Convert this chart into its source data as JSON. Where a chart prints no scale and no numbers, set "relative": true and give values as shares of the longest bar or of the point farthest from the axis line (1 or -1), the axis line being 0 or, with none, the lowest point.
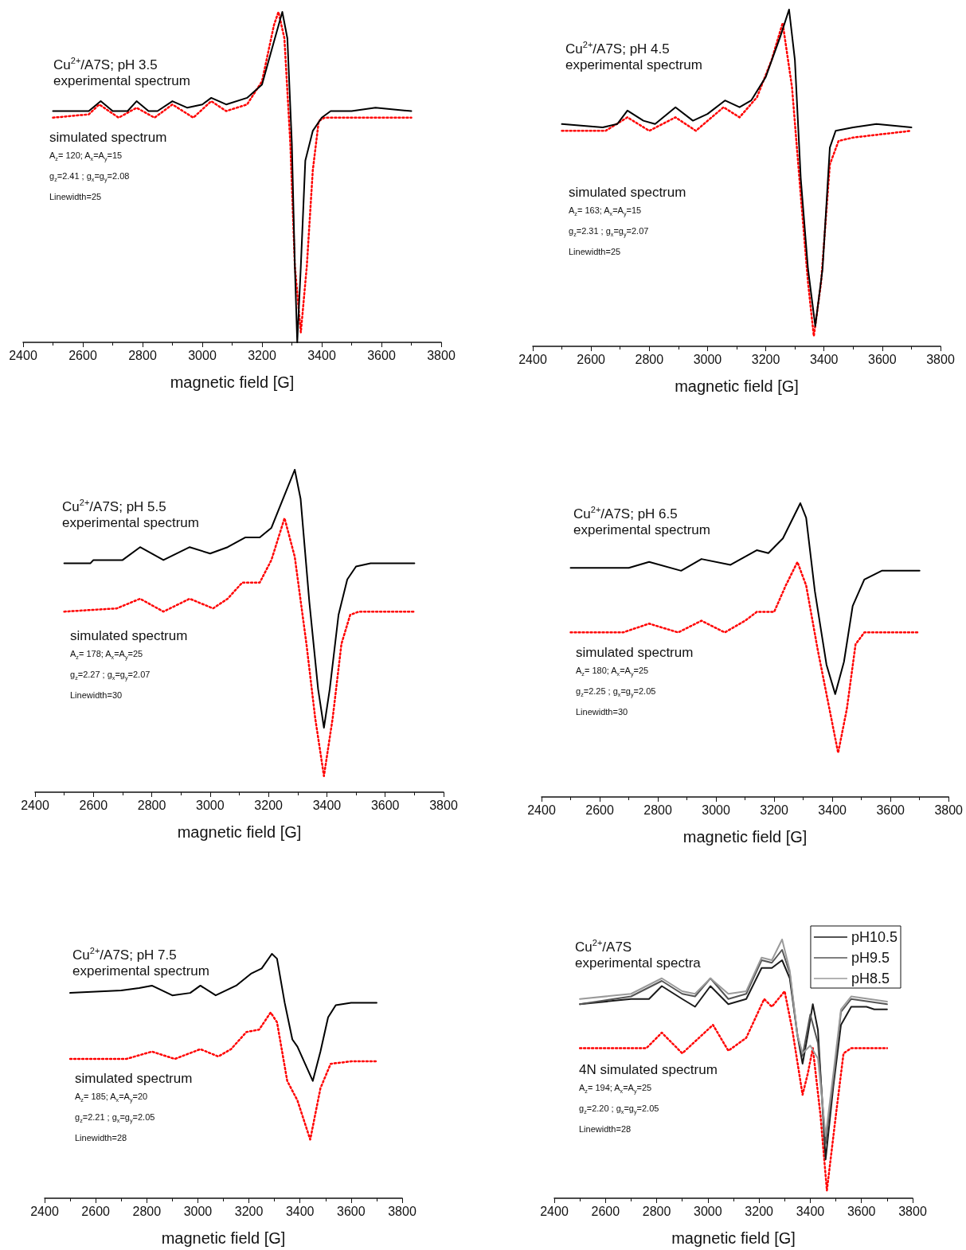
{
  "chart_data": [
    {
      "type": "line",
      "relative": true,
      "xlabel": "magnetic field [G]",
      "xlim": [
        2400,
        3800
      ],
      "xticks": [
        2400,
        2600,
        2800,
        3000,
        3200,
        3400,
        3600,
        3800
      ],
      "grid": false,
      "legend": false,
      "marker": "none",
      "annotations": [
        "Cu$^{2+}$/A7S; pH 3.5",
        "experimental spectrum",
        "simulated spectrum",
        "A$_{z}$= 120; A$_{x}$=A$_{y}$=15",
        "g$_{z}$=2.41 ; g$_{x}$=g$_{y}$=2.08",
        "Linewidth=25"
      ],
      "series": [
        {
          "color": "#000000",
          "line_style": "solid",
          "x": [
            2500,
            2620,
            2660,
            2700,
            2750,
            2780,
            2820,
            2850,
            2900,
            2950,
            3000,
            3030,
            3080,
            3150,
            3200,
            3240,
            3268,
            3285,
            3300,
            3310,
            3318,
            3330,
            3345,
            3370,
            3400,
            3430,
            3450,
            3500,
            3580,
            3700
          ],
          "values": [
            0.7,
            0.7,
            0.73,
            0.7,
            0.7,
            0.73,
            0.7,
            0.7,
            0.73,
            0.71,
            0.72,
            0.74,
            0.72,
            0.74,
            0.78,
            0.91,
            1.0,
            0.92,
            0.6,
            0.23,
            0.0,
            0.23,
            0.55,
            0.64,
            0.68,
            0.7,
            0.7,
            0.7,
            0.71,
            0.7
          ]
        },
        {
          "color": "#ff0000",
          "line_style": "dotted",
          "x": [
            2500,
            2620,
            2655,
            2720,
            2780,
            2840,
            2900,
            2970,
            3030,
            3080,
            3150,
            3200,
            3240,
            3255,
            3275,
            3295,
            3310,
            3330,
            3350,
            3370,
            3390,
            3410,
            3700
          ],
          "values": [
            0.68,
            0.69,
            0.72,
            0.68,
            0.71,
            0.68,
            0.72,
            0.68,
            0.73,
            0.7,
            0.72,
            0.79,
            0.96,
            1.0,
            0.92,
            0.6,
            0.23,
            0.03,
            0.23,
            0.52,
            0.67,
            0.68,
            0.68
          ]
        }
      ]
    },
    {
      "type": "line",
      "relative": true,
      "xlabel": "magnetic field [G]",
      "xlim": [
        2400,
        3800
      ],
      "xticks": [
        2400,
        2600,
        2800,
        3000,
        3200,
        3400,
        3600,
        3800
      ],
      "grid": false,
      "legend": false,
      "marker": "none",
      "annotations": [
        "Cu$^{2+}$/A7S; pH 4.5",
        "experimental spectrum",
        "simulated spectrum",
        "A$_{z}$= 163; A$_{x}$=A$_{y}$=15",
        "g$_{z}$=2.31 ; g$_{x}$=g$_{y}$=2.07",
        "Linewidth=25"
      ],
      "series": [
        {
          "color": "#000000",
          "line_style": "solid",
          "x": [
            2500,
            2640,
            2690,
            2725,
            2780,
            2820,
            2890,
            2950,
            3000,
            3060,
            3110,
            3150,
            3200,
            3250,
            3280,
            3300,
            3320,
            3345,
            3370,
            3395,
            3420,
            3440,
            3500,
            3580,
            3700
          ],
          "values": [
            0.66,
            0.65,
            0.66,
            0.7,
            0.67,
            0.66,
            0.71,
            0.67,
            0.69,
            0.73,
            0.71,
            0.73,
            0.8,
            0.92,
            1.0,
            0.85,
            0.5,
            0.23,
            0.06,
            0.23,
            0.59,
            0.64,
            0.65,
            0.66,
            0.65
          ]
        },
        {
          "color": "#ff0000",
          "line_style": "dotted",
          "x": [
            2500,
            2650,
            2725,
            2800,
            2890,
            2960,
            3055,
            3110,
            3170,
            3220,
            3258,
            3290,
            3320,
            3345,
            3365,
            3390,
            3420,
            3450,
            3500,
            3700
          ],
          "values": [
            0.64,
            0.64,
            0.68,
            0.64,
            0.68,
            0.64,
            0.71,
            0.68,
            0.74,
            0.85,
            0.96,
            0.77,
            0.45,
            0.19,
            0.03,
            0.19,
            0.54,
            0.61,
            0.62,
            0.64
          ]
        }
      ]
    },
    {
      "type": "line",
      "relative": true,
      "xlabel": "magnetic field [G]",
      "xlim": [
        2400,
        3800
      ],
      "xticks": [
        2400,
        2600,
        2800,
        3000,
        3200,
        3400,
        3600,
        3800
      ],
      "grid": false,
      "legend": false,
      "marker": "none",
      "annotations": [
        "Cu$^{2+}$/A7S; pH 5.5",
        "experimental spectrum",
        "simulated spectrum",
        "A$_{z}$= 178; A$_{x}$=A$_{y}$=25",
        "g$_{z}$=2.27 ; g$_{x}$=g$_{y}$=2.07",
        "Linewidth=30"
      ],
      "series": [
        {
          "color": "#000000",
          "line_style": "solid",
          "x": [
            2500,
            2590,
            2600,
            2700,
            2760,
            2840,
            2930,
            3000,
            3060,
            3120,
            3170,
            3210,
            3250,
            3290,
            3310,
            3340,
            3370,
            3390,
            3410,
            3440,
            3470,
            3500,
            3550,
            3700
          ],
          "values": [
            0.71,
            0.71,
            0.72,
            0.72,
            0.76,
            0.72,
            0.76,
            0.74,
            0.76,
            0.79,
            0.79,
            0.82,
            0.91,
            1.0,
            0.91,
            0.59,
            0.32,
            0.2,
            0.32,
            0.55,
            0.66,
            0.7,
            0.71,
            0.71
          ]
        },
        {
          "color": "#ff0000",
          "line_style": "dotted",
          "x": [
            2500,
            2680,
            2760,
            2840,
            2930,
            3010,
            3060,
            3110,
            3170,
            3210,
            3255,
            3290,
            3330,
            3360,
            3390,
            3420,
            3450,
            3480,
            3510,
            3700
          ],
          "values": [
            0.56,
            0.57,
            0.6,
            0.56,
            0.6,
            0.57,
            0.6,
            0.65,
            0.65,
            0.72,
            0.85,
            0.73,
            0.46,
            0.23,
            0.05,
            0.23,
            0.46,
            0.55,
            0.56,
            0.56
          ]
        }
      ]
    },
    {
      "type": "line",
      "relative": true,
      "xlabel": "magnetic field [G]",
      "xlim": [
        2400,
        3800
      ],
      "xticks": [
        2400,
        2600,
        2800,
        3000,
        3200,
        3400,
        3600,
        3800
      ],
      "grid": false,
      "legend": false,
      "marker": "none",
      "annotations": [
        "Cu$^{2+}$/A7S; pH 6.5",
        "experimental spectrum",
        "simulated spectrum",
        "A$_{z}$= 180; A$_{x}$=A$_{y}$=25",
        "g$_{z}$=2.25 ; g$_{x}$=g$_{y}$=2.05",
        "Linewidth=30"
      ],
      "series": [
        {
          "color": "#000000",
          "line_style": "solid",
          "x": [
            2500,
            2700,
            2770,
            2880,
            2950,
            3050,
            3140,
            3180,
            3230,
            3270,
            3290,
            3310,
            3340,
            3380,
            3410,
            3440,
            3470,
            3510,
            3570,
            3700
          ],
          "values": [
            0.78,
            0.78,
            0.8,
            0.77,
            0.81,
            0.79,
            0.84,
            0.83,
            0.88,
            0.96,
            1.0,
            0.95,
            0.7,
            0.45,
            0.35,
            0.46,
            0.65,
            0.74,
            0.77,
            0.77
          ]
        },
        {
          "color": "#ff0000",
          "line_style": "dotted",
          "x": [
            2500,
            2680,
            2770,
            2870,
            2950,
            3030,
            3100,
            3140,
            3200,
            3240,
            3280,
            3310,
            3350,
            3390,
            3420,
            3450,
            3480,
            3510,
            3700
          ],
          "values": [
            0.56,
            0.56,
            0.59,
            0.56,
            0.6,
            0.56,
            0.6,
            0.63,
            0.63,
            0.72,
            0.8,
            0.72,
            0.5,
            0.3,
            0.15,
            0.3,
            0.52,
            0.56,
            0.56
          ]
        }
      ]
    },
    {
      "type": "line",
      "relative": true,
      "xlabel": "magnetic field [G]",
      "xlim": [
        2400,
        3800
      ],
      "xticks": [
        2400,
        2600,
        2800,
        3000,
        3200,
        3400,
        3600,
        3800
      ],
      "grid": false,
      "legend": false,
      "marker": "none",
      "annotations": [
        "Cu$^{2+}$/A7S; pH 7.5",
        "experimental spectrum",
        "simulated spectrum",
        "A$_{z}$= 185; A$_{x}$=A$_{y}$=20",
        "g$_{z}$=2.21 ; g$_{x}$=g$_{y}$=2.05",
        "Linewidth=28"
      ],
      "series": [
        {
          "color": "#000000",
          "line_style": "solid",
          "x": [
            2500,
            2700,
            2770,
            2820,
            2900,
            2970,
            3010,
            3070,
            3150,
            3210,
            3250,
            3290,
            3310,
            3340,
            3370,
            3390,
            3420,
            3450,
            3480,
            3510,
            3540,
            3600,
            3700
          ],
          "values": [
            0.84,
            0.85,
            0.86,
            0.87,
            0.83,
            0.84,
            0.87,
            0.83,
            0.87,
            0.92,
            0.94,
            1.0,
            0.98,
            0.8,
            0.65,
            0.62,
            0.55,
            0.48,
            0.6,
            0.74,
            0.79,
            0.8,
            0.8
          ]
        },
        {
          "color": "#ff0000",
          "line_style": "dotted",
          "x": [
            2500,
            2720,
            2820,
            2910,
            3010,
            3080,
            3130,
            3190,
            3240,
            3285,
            3310,
            3350,
            3390,
            3440,
            3480,
            3520,
            3600,
            3700
          ],
          "values": [
            0.57,
            0.57,
            0.6,
            0.57,
            0.61,
            0.58,
            0.61,
            0.68,
            0.69,
            0.76,
            0.72,
            0.48,
            0.4,
            0.24,
            0.45,
            0.55,
            0.56,
            0.56
          ]
        }
      ]
    },
    {
      "type": "line",
      "relative": true,
      "xlabel": "magnetic field [G]",
      "xlim": [
        2400,
        3800
      ],
      "xticks": [
        2400,
        2600,
        2800,
        3000,
        3200,
        3400,
        3600,
        3800
      ],
      "grid": false,
      "legend": "top right",
      "marker": "none",
      "annotations": [
        "Cu$^{2+}$/A7S",
        "experimental spectra",
        "4N simulated spectrum",
        "A$_{z}$= 194; A$_{x}$=A$_{y}$=25",
        "g$_{z}$=2.20 ; g$_{x}$=g$_{y}$=2.05",
        "Linewidth=28"
      ],
      "series": [
        {
          "name": "pH10.5",
          "color": "#1a1a1a",
          "line_style": "solid",
          "x": [
            2500,
            2700,
            2770,
            2820,
            2900,
            2950,
            3010,
            3080,
            3150,
            3210,
            3250,
            3290,
            3320,
            3350,
            3370,
            3390,
            3410,
            3430,
            3460,
            3490,
            3520,
            3560,
            3620,
            3650,
            3700
          ],
          "values": [
            0.75,
            0.77,
            0.77,
            0.82,
            0.77,
            0.74,
            0.82,
            0.75,
            0.77,
            0.89,
            0.89,
            0.92,
            0.85,
            0.63,
            0.52,
            0.63,
            0.75,
            0.65,
            0.15,
            0.43,
            0.67,
            0.74,
            0.74,
            0.73,
            0.73
          ]
        },
        {
          "name": "pH9.5",
          "color": "#555555",
          "line_style": "solid",
          "x": [
            2500,
            2700,
            2820,
            2900,
            2950,
            3010,
            3080,
            3150,
            3210,
            3250,
            3290,
            3320,
            3350,
            3370,
            3400,
            3430,
            3460,
            3490,
            3520,
            3560,
            3700
          ],
          "values": [
            0.75,
            0.78,
            0.84,
            0.79,
            0.78,
            0.85,
            0.77,
            0.79,
            0.92,
            0.91,
            0.96,
            0.87,
            0.63,
            0.55,
            0.71,
            0.6,
            0.21,
            0.45,
            0.72,
            0.77,
            0.75
          ]
        },
        {
          "name": "pH8.5",
          "color": "#9a9a9a",
          "line_style": "solid",
          "x": [
            2500,
            2700,
            2820,
            2900,
            2950,
            3010,
            3080,
            3150,
            3210,
            3250,
            3290,
            3320,
            3350,
            3370,
            3400,
            3430,
            3460,
            3490,
            3520,
            3560,
            3700
          ],
          "values": [
            0.77,
            0.79,
            0.85,
            0.8,
            0.79,
            0.85,
            0.79,
            0.8,
            0.93,
            0.92,
            1.0,
            0.88,
            0.63,
            0.56,
            0.59,
            0.54,
            0.24,
            0.48,
            0.73,
            0.78,
            0.76
          ]
        },
        {
          "color": "#ff0000",
          "line_style": "dotted",
          "x": [
            2500,
            2760,
            2820,
            2900,
            3020,
            3080,
            3150,
            3220,
            3250,
            3300,
            3330,
            3370,
            3390,
            3410,
            3440,
            3465,
            3500,
            3530,
            3560,
            3700
          ],
          "values": [
            0.58,
            0.58,
            0.64,
            0.56,
            0.67,
            0.57,
            0.62,
            0.77,
            0.74,
            0.8,
            0.65,
            0.4,
            0.48,
            0.58,
            0.32,
            0.03,
            0.32,
            0.56,
            0.58,
            0.58
          ]
        }
      ]
    }
  ]
}
